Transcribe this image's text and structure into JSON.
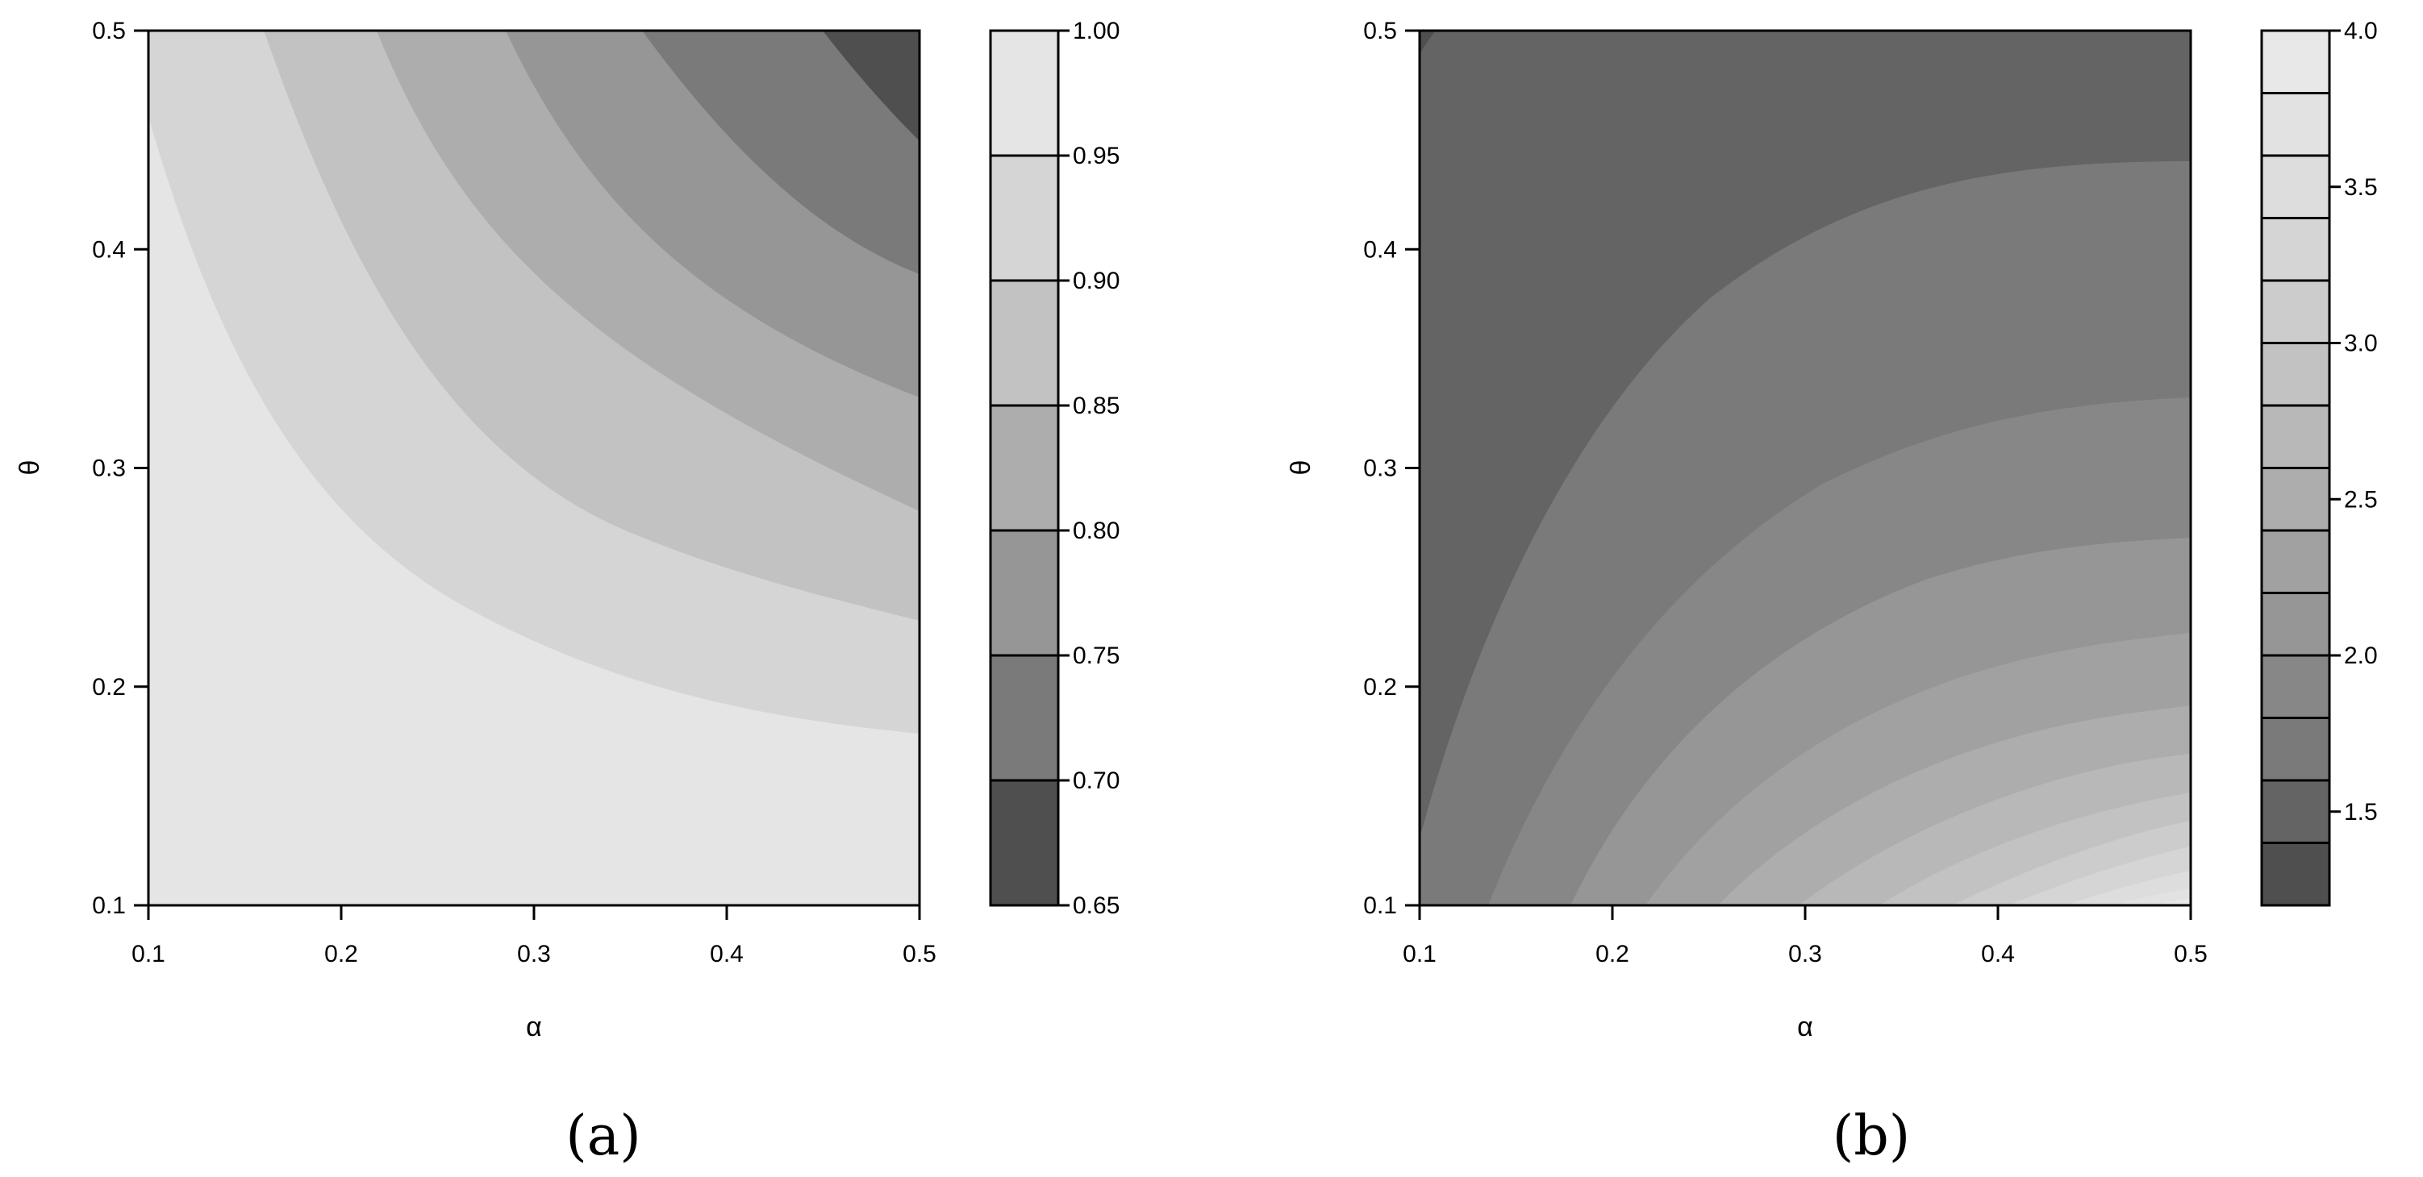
{
  "chart_data": [
    {
      "type": "contour",
      "xlabel": "α",
      "ylabel": "θ",
      "xlim": [
        0.1,
        0.5
      ],
      "ylim": [
        0.1,
        0.5
      ],
      "x_ticks": [
        "0.1",
        "0.2",
        "0.3",
        "0.4",
        "0.5"
      ],
      "y_ticks": [
        "0.1",
        "0.2",
        "0.3",
        "0.4",
        "0.5"
      ],
      "colorbar_levels": [
        0.65,
        0.7,
        0.75,
        0.8,
        0.85,
        0.9,
        0.95,
        1.0
      ],
      "colorbar_labels": [
        "0.65",
        "0.70",
        "0.75",
        "0.80",
        "0.85",
        "0.90",
        "0.95",
        "1.00"
      ],
      "level_colors": [
        "#4f4f4f",
        "#7a7a7a",
        "#969696",
        "#adadad",
        "#c2c2c2",
        "#d5d5d5",
        "#e5e5e5"
      ],
      "caption": "(a)",
      "grid": false
    },
    {
      "type": "contour",
      "xlabel": "α",
      "ylabel": "θ",
      "xlim": [
        0.1,
        0.5
      ],
      "ylim": [
        0.1,
        0.5
      ],
      "x_ticks": [
        "0.1",
        "0.2",
        "0.3",
        "0.4",
        "0.5"
      ],
      "y_ticks": [
        "0.1",
        "0.2",
        "0.3",
        "0.4",
        "0.5"
      ],
      "colorbar_levels": [
        1.2,
        1.4,
        1.6,
        1.8,
        2.0,
        2.2,
        2.4,
        2.6,
        2.8,
        3.0,
        3.2,
        3.4,
        3.6,
        3.8,
        4.0
      ],
      "colorbar_labels": [
        "1.5",
        "2.0",
        "2.5",
        "3.0",
        "3.5",
        "4.0"
      ],
      "colorbar_label_values": [
        1.5,
        2.0,
        2.5,
        3.0,
        3.5,
        4.0
      ],
      "level_colors": [
        "#4f4f4f",
        "#646464",
        "#7a7a7a",
        "#878787",
        "#969696",
        "#a1a1a1",
        "#adadad",
        "#b8b8b8",
        "#c2c2c2",
        "#cccccc",
        "#d5d5d5",
        "#dddddd",
        "#e2e2e2",
        "#e8e8e8"
      ],
      "caption": "(b)",
      "grid": false
    }
  ]
}
